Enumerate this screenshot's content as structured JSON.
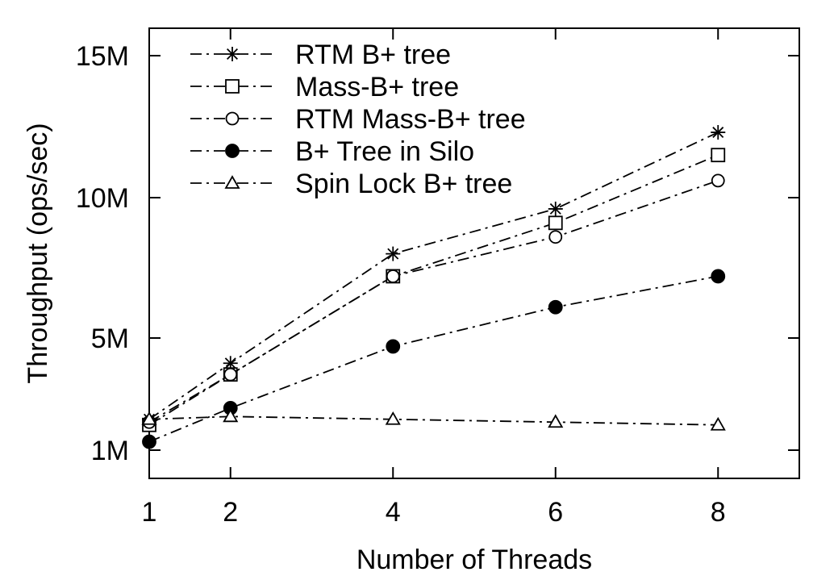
{
  "chart_data": {
    "type": "line",
    "title": "",
    "xlabel": "Number of Threads",
    "ylabel": "Throughput (ops/sec)",
    "xlim": [
      1,
      9
    ],
    "ylim": [
      0,
      16000000
    ],
    "x_ticks": [
      {
        "value": 1,
        "label": "1"
      },
      {
        "value": 2,
        "label": "2"
      },
      {
        "value": 4,
        "label": "4"
      },
      {
        "value": 6,
        "label": "6"
      },
      {
        "value": 8,
        "label": "8"
      }
    ],
    "y_ticks": [
      {
        "value": 1000000,
        "label": "1M"
      },
      {
        "value": 5000000,
        "label": "5M"
      },
      {
        "value": 10000000,
        "label": "10M"
      },
      {
        "value": 15000000,
        "label": "15M"
      }
    ],
    "grid": false,
    "legend_position": "top-left",
    "x": [
      1,
      2,
      4,
      6,
      8
    ],
    "series": [
      {
        "name": "RTM B+ tree",
        "marker": "star",
        "values": [
          2100000,
          4100000,
          8000000,
          9600000,
          12300000
        ]
      },
      {
        "name": "Mass-B+ tree",
        "marker": "open-square",
        "values": [
          1900000,
          3700000,
          7200000,
          9100000,
          11500000
        ]
      },
      {
        "name": "RTM Mass-B+ tree",
        "marker": "open-circle",
        "values": [
          2000000,
          3700000,
          7200000,
          8600000,
          10600000
        ]
      },
      {
        "name": "B+ Tree in Silo",
        "marker": "filled-circle",
        "values": [
          1300000,
          2500000,
          4700000,
          6100000,
          7200000
        ]
      },
      {
        "name": "Spin Lock B+ tree",
        "marker": "open-triangle",
        "values": [
          2100000,
          2200000,
          2100000,
          2000000,
          1900000
        ]
      }
    ]
  }
}
